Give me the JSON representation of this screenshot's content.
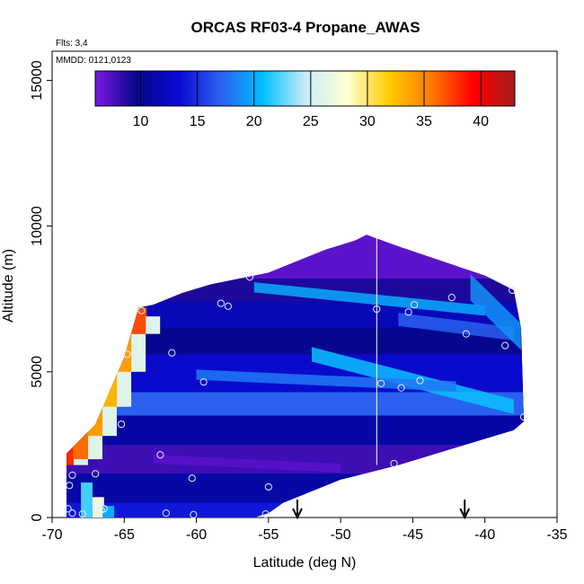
{
  "chart_data": {
    "type": "heatmap",
    "title": "ORCAS RF03-4 Propane_AWAS",
    "xlabel": "Latitude (deg N)",
    "ylabel": "Altitude (m)",
    "xlim": [
      -70,
      -35
    ],
    "ylim": [
      0,
      16000
    ],
    "x_ticks": [
      -70,
      -65,
      -60,
      -55,
      -50,
      -45,
      -40,
      -35
    ],
    "x_tick_labels": [
      "-70",
      "-65",
      "-60",
      "-55",
      "-50",
      "-45",
      "-40",
      "-35"
    ],
    "y_ticks": [
      0,
      5000,
      10000,
      15000
    ],
    "y_tick_labels": [
      "0",
      "5000",
      "10000",
      "15000"
    ],
    "notes": {
      "flights": "Flts: 3,4",
      "dates": "MMDD: 0121,0123"
    },
    "colorbar": {
      "range": [
        6,
        43
      ],
      "ticks": [
        10,
        15,
        20,
        25,
        30,
        35,
        40
      ],
      "tick_labels": [
        "10",
        "15",
        "20",
        "25",
        "30",
        "35",
        "40"
      ],
      "stops": [
        "#7b17e3",
        "#06068a",
        "#0a0ad5",
        "#2a62f0",
        "#00bfff",
        "#c8ecfa",
        "#ffffd0",
        "#ffcc00",
        "#ff7a00",
        "#ff0000",
        "#a51c1c"
      ]
    },
    "envelope_top": [
      [
        -69,
        2200
      ],
      [
        -67,
        3200
      ],
      [
        -65,
        5500
      ],
      [
        -64,
        7200
      ],
      [
        -63,
        7300
      ],
      [
        -61,
        7700
      ],
      [
        -59,
        8000
      ],
      [
        -57,
        8200
      ],
      [
        -55,
        8400
      ],
      [
        -53,
        8800
      ],
      [
        -51,
        9200
      ],
      [
        -49,
        9500
      ],
      [
        -48.2,
        9700
      ],
      [
        -46,
        9300
      ],
      [
        -43,
        8800
      ],
      [
        -40,
        8300
      ],
      [
        -38,
        7800
      ],
      [
        -37.5,
        6500
      ],
      [
        -37.3,
        3300
      ]
    ],
    "envelope_bottom": [
      [
        -37.3,
        3300
      ],
      [
        -38,
        3000
      ],
      [
        -40,
        2700
      ],
      [
        -42,
        2400
      ],
      [
        -44,
        2100
      ],
      [
        -46,
        1800
      ],
      [
        -48,
        1550
      ],
      [
        -50,
        1300
      ],
      [
        -52,
        900
      ],
      [
        -54,
        500
      ],
      [
        -55,
        150
      ],
      [
        -56,
        0
      ],
      [
        -69,
        0
      ]
    ],
    "samples": [
      {
        "lat": -63.8,
        "alt": 7100
      },
      {
        "lat": -64.8,
        "alt": 5600
      },
      {
        "lat": -61.7,
        "alt": 5650
      },
      {
        "lat": -58.3,
        "alt": 7350
      },
      {
        "lat": -57.8,
        "alt": 7250
      },
      {
        "lat": -56.3,
        "alt": 8250
      },
      {
        "lat": -59.5,
        "alt": 4650
      },
      {
        "lat": -65.2,
        "alt": 3200
      },
      {
        "lat": -62.5,
        "alt": 2150
      },
      {
        "lat": -60.3,
        "alt": 1350
      },
      {
        "lat": -55.0,
        "alt": 1050
      },
      {
        "lat": -67.0,
        "alt": 1500
      },
      {
        "lat": -68.6,
        "alt": 1450
      },
      {
        "lat": -68.8,
        "alt": 1100
      },
      {
        "lat": -68.9,
        "alt": 300
      },
      {
        "lat": -68.6,
        "alt": 150
      },
      {
        "lat": -67.9,
        "alt": 120
      },
      {
        "lat": -66.6,
        "alt": 250
      },
      {
        "lat": -66.4,
        "alt": 300
      },
      {
        "lat": -62.1,
        "alt": 150
      },
      {
        "lat": -60.2,
        "alt": 100
      },
      {
        "lat": -55.2,
        "alt": 120
      },
      {
        "lat": -47.5,
        "alt": 7150
      },
      {
        "lat": -45.3,
        "alt": 7050
      },
      {
        "lat": -44.9,
        "alt": 7300
      },
      {
        "lat": -42.3,
        "alt": 7550
      },
      {
        "lat": -41.3,
        "alt": 6300
      },
      {
        "lat": -38.6,
        "alt": 5900
      },
      {
        "lat": -38.1,
        "alt": 7800
      },
      {
        "lat": -47.2,
        "alt": 4600
      },
      {
        "lat": -44.5,
        "alt": 4700
      },
      {
        "lat": -45.8,
        "alt": 4450
      },
      {
        "lat": -37.3,
        "alt": 3450
      },
      {
        "lat": -46.3,
        "alt": 1850
      }
    ],
    "flight_track": {
      "lat": -47.5,
      "alt_range": [
        1800,
        9700
      ]
    },
    "markers": [
      {
        "lat": -53.0
      },
      {
        "lat": -41.4
      }
    ]
  }
}
